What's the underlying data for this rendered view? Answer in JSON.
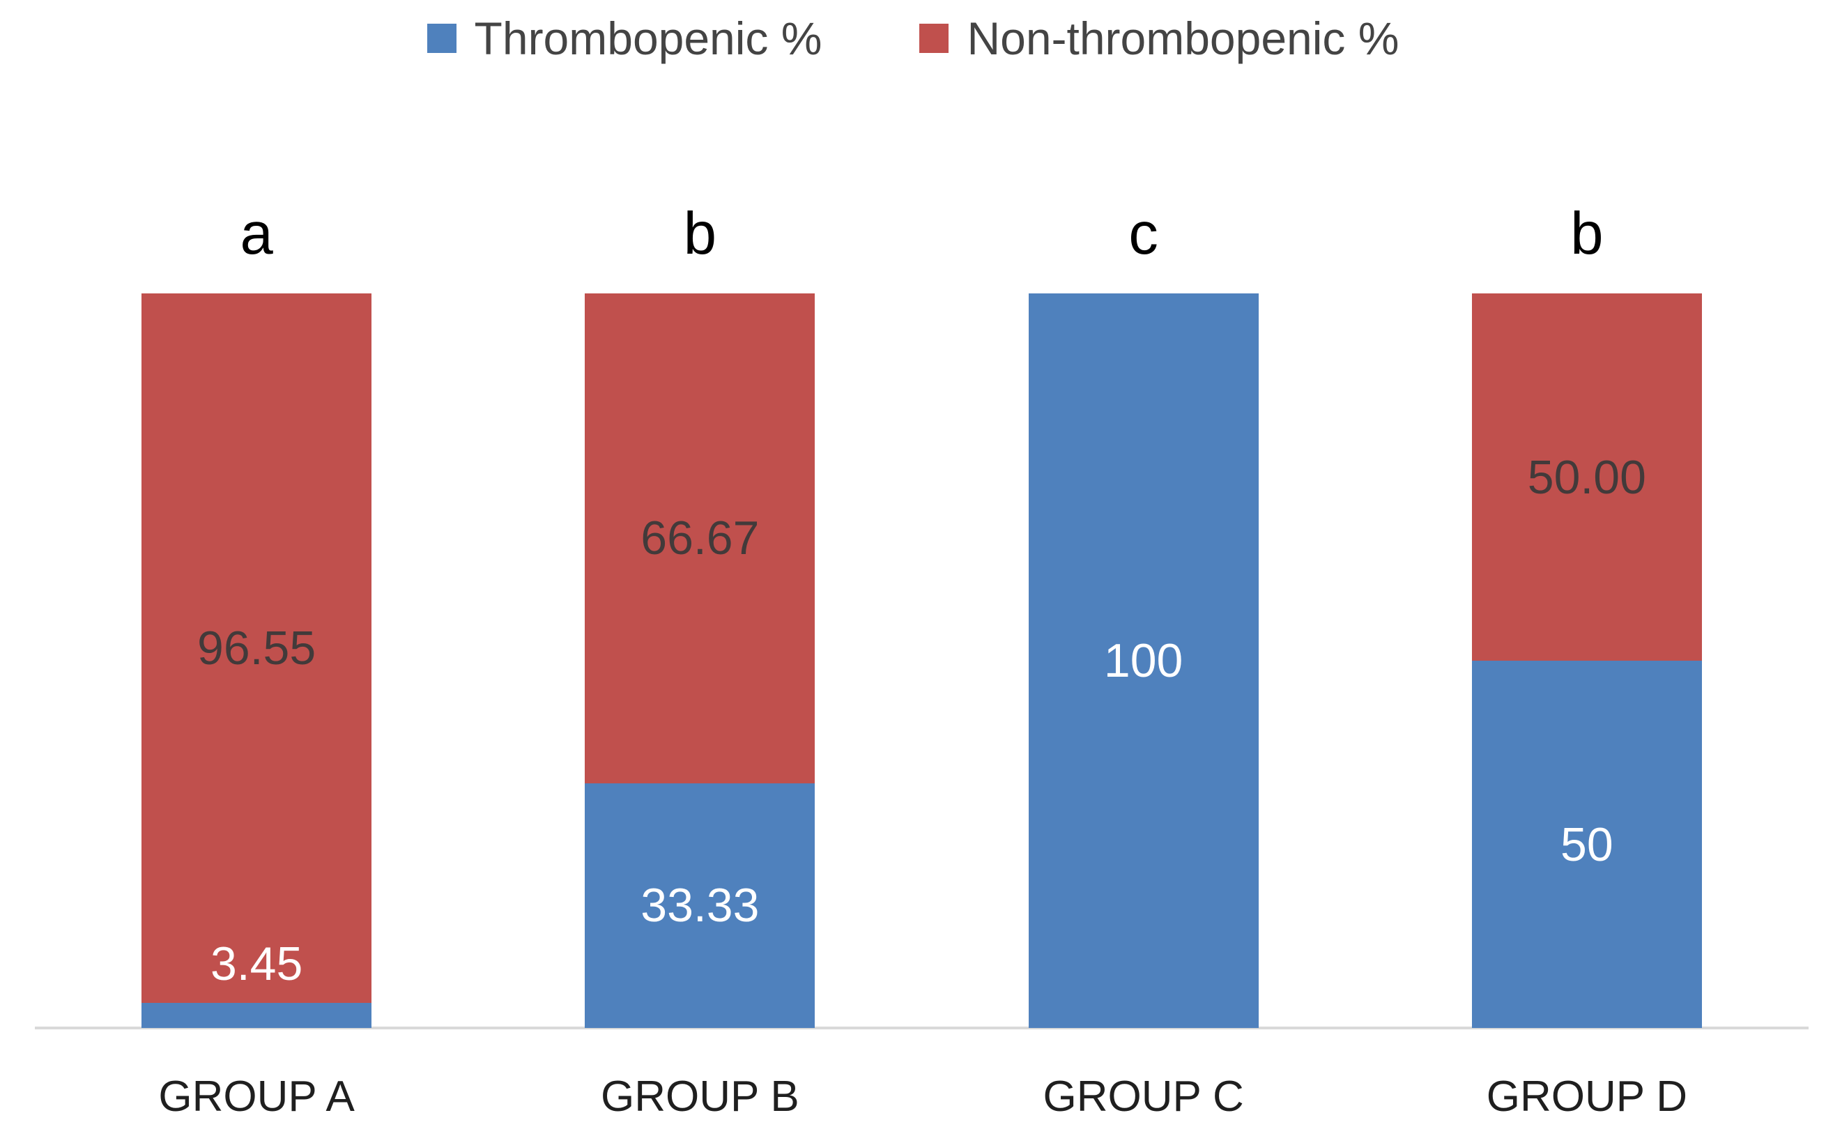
{
  "chart_data": {
    "type": "bar",
    "subtype": "stacked-100-percent",
    "title": "",
    "xlabel": "",
    "ylabel": "",
    "ylim": [
      0,
      100
    ],
    "grid": false,
    "legend_position": "top-center",
    "background_color": "#FFFFFF",
    "axis_line_color": "#D9D9D9",
    "categories": [
      "GROUP A",
      "GROUP B",
      "GROUP C",
      "GROUP D"
    ],
    "significance_letters": [
      "a",
      "b",
      "c",
      "b"
    ],
    "series": [
      {
        "name": "Thrombopenic %",
        "color": "#4F81BD",
        "label_color": "#FFFFFF",
        "values": [
          3.45,
          33.33,
          100,
          50
        ],
        "data_labels": [
          "3.45",
          "33.33",
          "100",
          "50"
        ]
      },
      {
        "name": "Non-thrombopenic %",
        "color": "#C0504D",
        "label_color": "#423A3A",
        "values": [
          96.55,
          66.67,
          0,
          50
        ],
        "data_labels": [
          "96.55",
          "66.67",
          "",
          "50.00"
        ]
      }
    ]
  }
}
